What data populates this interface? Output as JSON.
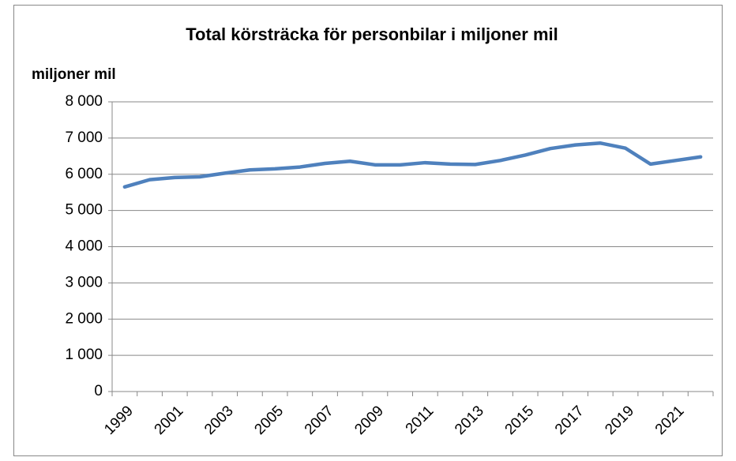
{
  "chart_data": {
    "type": "line",
    "title": "Total körsträcka för personbilar i miljoner mil",
    "y_label": "miljoner mil",
    "categories": [
      "1999",
      null,
      "2001",
      null,
      "2003",
      null,
      "2005",
      null,
      "2007",
      null,
      "2009",
      null,
      "2011",
      null,
      "2013",
      null,
      "2015",
      null,
      "2017",
      null,
      "2019",
      null,
      "2021",
      null
    ],
    "series": [
      {
        "name": "Total körsträcka",
        "color": "#4f81bd",
        "values": [
          5650,
          5850,
          5910,
          5930,
          6030,
          6120,
          6150,
          6200,
          6300,
          6360,
          6260,
          6260,
          6320,
          6280,
          6270,
          6380,
          6530,
          6710,
          6810,
          6860,
          6720,
          6280,
          6380,
          6480
        ]
      }
    ],
    "ylim": [
      0,
      8000
    ],
    "yticks": [
      0,
      {
        "value": 1000,
        "label": "1 000"
      },
      {
        "value": 2000,
        "label": "2 000"
      },
      {
        "value": 3000,
        "label": "3 000"
      },
      {
        "value": 4000,
        "label": "4 000"
      },
      {
        "value": 5000,
        "label": "5 000"
      },
      {
        "value": 6000,
        "label": "6 000"
      },
      {
        "value": 7000,
        "label": "7 000"
      },
      {
        "value": 8000,
        "label": "8 000"
      }
    ],
    "grid": true,
    "legend": false
  }
}
